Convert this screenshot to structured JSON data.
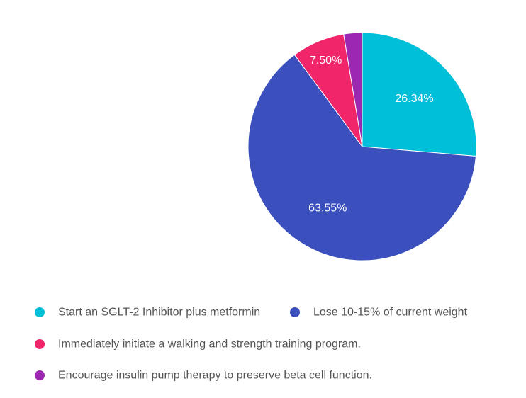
{
  "chart_data": {
    "type": "pie",
    "title": "",
    "series": [
      {
        "name": "Start an SGLT-2 Inhibitor plus metformin",
        "value": 26.34,
        "label": "26.34%",
        "color": "#00C0D9"
      },
      {
        "name": "Lose 10-15% of current weight",
        "value": 63.55,
        "label": "63.55%",
        "color": "#3B4FBD"
      },
      {
        "name": "Immediately initiate a walking and strength training program.",
        "value": 7.5,
        "label": "7.50%",
        "color": "#F0256A"
      },
      {
        "name": "Encourage insulin pump therapy to preserve beta cell function.",
        "value": 2.61,
        "label": "",
        "color": "#9C27B0"
      }
    ],
    "legend_position": "bottom",
    "start_angle": "top",
    "direction": "clockwise"
  }
}
